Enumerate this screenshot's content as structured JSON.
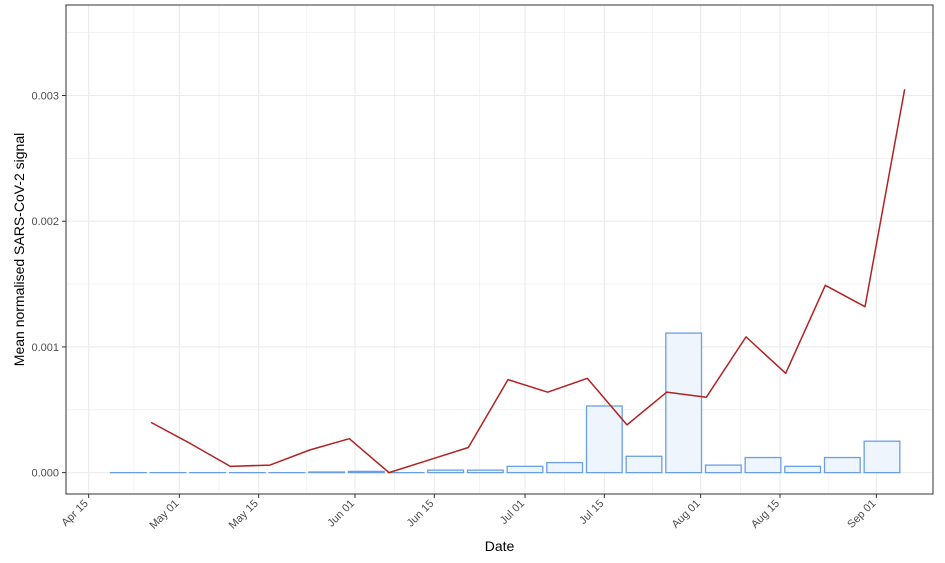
{
  "chart_data": {
    "type": "bar",
    "xlabel": "Date",
    "ylabel": "Mean normalised SARS-CoV-2 signal",
    "xlim": [
      "2020-04-11",
      "2020-09-11"
    ],
    "ylim": [
      -0.00017,
      0.00372
    ],
    "x_ticks": [
      {
        "date": "2020-04-15",
        "label": "Apr 15"
      },
      {
        "date": "2020-05-01",
        "label": "May 01"
      },
      {
        "date": "2020-05-15",
        "label": "May 15"
      },
      {
        "date": "2020-06-01",
        "label": "Jun 01"
      },
      {
        "date": "2020-06-15",
        "label": "Jun 15"
      },
      {
        "date": "2020-07-01",
        "label": "Jul 01"
      },
      {
        "date": "2020-07-15",
        "label": "Jul 15"
      },
      {
        "date": "2020-08-01",
        "label": "Aug 01"
      },
      {
        "date": "2020-08-15",
        "label": "Aug 15"
      },
      {
        "date": "2020-09-01",
        "label": "Sep 01"
      }
    ],
    "y_ticks": [
      {
        "value": 0.0,
        "label": "0.000"
      },
      {
        "value": 0.001,
        "label": "0.001"
      },
      {
        "value": 0.002,
        "label": "0.002"
      },
      {
        "value": 0.003,
        "label": "0.003"
      }
    ],
    "grid": true,
    "colors": {
      "bar_fill": "#eef5fd",
      "bar_stroke": "#6b9fe3",
      "line": "#b22222",
      "grid": "#ebebeb",
      "panel_border": "#333333"
    },
    "series": [
      {
        "type": "bar",
        "x": [
          "2020-04-22",
          "2020-04-29",
          "2020-05-06",
          "2020-05-13",
          "2020-05-20",
          "2020-05-27",
          "2020-06-03",
          "2020-06-10",
          "2020-06-17",
          "2020-06-24",
          "2020-07-01",
          "2020-07-08",
          "2020-07-15",
          "2020-07-22",
          "2020-07-29",
          "2020-08-05",
          "2020-08-12",
          "2020-08-19",
          "2020-08-26",
          "2020-09-02"
        ],
        "values": [
          0.0,
          0.0,
          0.0,
          0.0,
          0.0,
          5e-06,
          1e-05,
          0.0,
          2e-05,
          2e-05,
          5e-05,
          8e-05,
          0.00053,
          0.00013,
          0.00111,
          6e-05,
          0.00012,
          5e-05,
          0.00012,
          0.00025
        ]
      },
      {
        "type": "line",
        "x": [
          "2020-04-26",
          "2020-05-03",
          "2020-05-10",
          "2020-05-17",
          "2020-05-24",
          "2020-05-31",
          "2020-06-07",
          "2020-06-14",
          "2020-06-21",
          "2020-06-28",
          "2020-07-05",
          "2020-07-12",
          "2020-07-19",
          "2020-07-26",
          "2020-08-02",
          "2020-08-09",
          "2020-08-16",
          "2020-08-23",
          "2020-08-30",
          "2020-09-06"
        ],
        "values": [
          0.0004,
          0.00023,
          5e-05,
          6e-05,
          0.00018,
          0.00027,
          0.0,
          0.0001,
          0.0002,
          0.00074,
          0.00064,
          0.00075,
          0.00038,
          0.00064,
          0.0006,
          0.00108,
          0.00079,
          0.00149,
          0.00132,
          0.00305
        ]
      }
    ]
  }
}
